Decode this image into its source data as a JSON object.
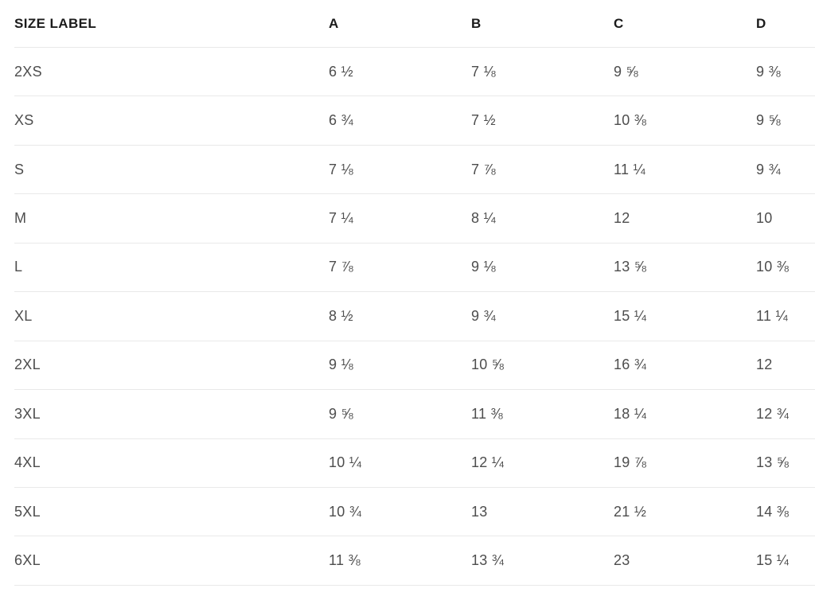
{
  "colors": {
    "background": "#ffffff",
    "header_text": "#1b1b1b",
    "body_text": "#4d4d4d",
    "divider": "#e9e9e9"
  },
  "chart_data": {
    "type": "table",
    "columns": [
      "SIZE LABEL",
      "A",
      "B",
      "C",
      "D"
    ],
    "rows": [
      [
        "2XS",
        "6 ½",
        "7 ⅛",
        "9 ⅝",
        "9 ⅜"
      ],
      [
        "XS",
        "6 ¾",
        "7 ½",
        "10 ⅜",
        "9 ⅝"
      ],
      [
        "S",
        "7 ⅛",
        "7 ⅞",
        "11 ¼",
        "9 ¾"
      ],
      [
        "M",
        "7 ¼",
        "8 ¼",
        "12",
        "10"
      ],
      [
        "L",
        "7 ⅞",
        "9 ⅛",
        "13 ⅝",
        "10 ⅜"
      ],
      [
        "XL",
        "8 ½",
        "9 ¾",
        "15 ¼",
        "11 ¼"
      ],
      [
        "2XL",
        "9 ⅛",
        "10 ⅝",
        "16 ¾",
        "12"
      ],
      [
        "3XL",
        "9 ⅝",
        "11 ⅜",
        "18 ¼",
        "12 ¾"
      ],
      [
        "4XL",
        "10 ¼",
        "12 ¼",
        "19 ⅞",
        "13 ⅝"
      ],
      [
        "5XL",
        "10 ¾",
        "13",
        "21 ½",
        "14 ⅜"
      ],
      [
        "6XL",
        "11 ⅜",
        "13 ¾",
        "23",
        "15 ¼"
      ]
    ],
    "values_decimal": {
      "size_labels": [
        "2XS",
        "XS",
        "S",
        "M",
        "L",
        "XL",
        "2XL",
        "3XL",
        "4XL",
        "5XL",
        "6XL"
      ],
      "A": [
        6.5,
        6.75,
        7.125,
        7.25,
        7.875,
        8.5,
        9.125,
        9.625,
        10.25,
        10.75,
        11.375
      ],
      "B": [
        7.125,
        7.5,
        7.875,
        8.25,
        9.125,
        9.75,
        10.625,
        11.375,
        12.25,
        13,
        13.75
      ],
      "C": [
        9.625,
        10.375,
        11.25,
        12,
        13.625,
        15.25,
        16.75,
        18.25,
        19.875,
        21.5,
        23
      ],
      "D": [
        9.375,
        9.625,
        9.75,
        10,
        10.375,
        11.25,
        12,
        12.75,
        13.625,
        14.375,
        15.25
      ]
    }
  }
}
